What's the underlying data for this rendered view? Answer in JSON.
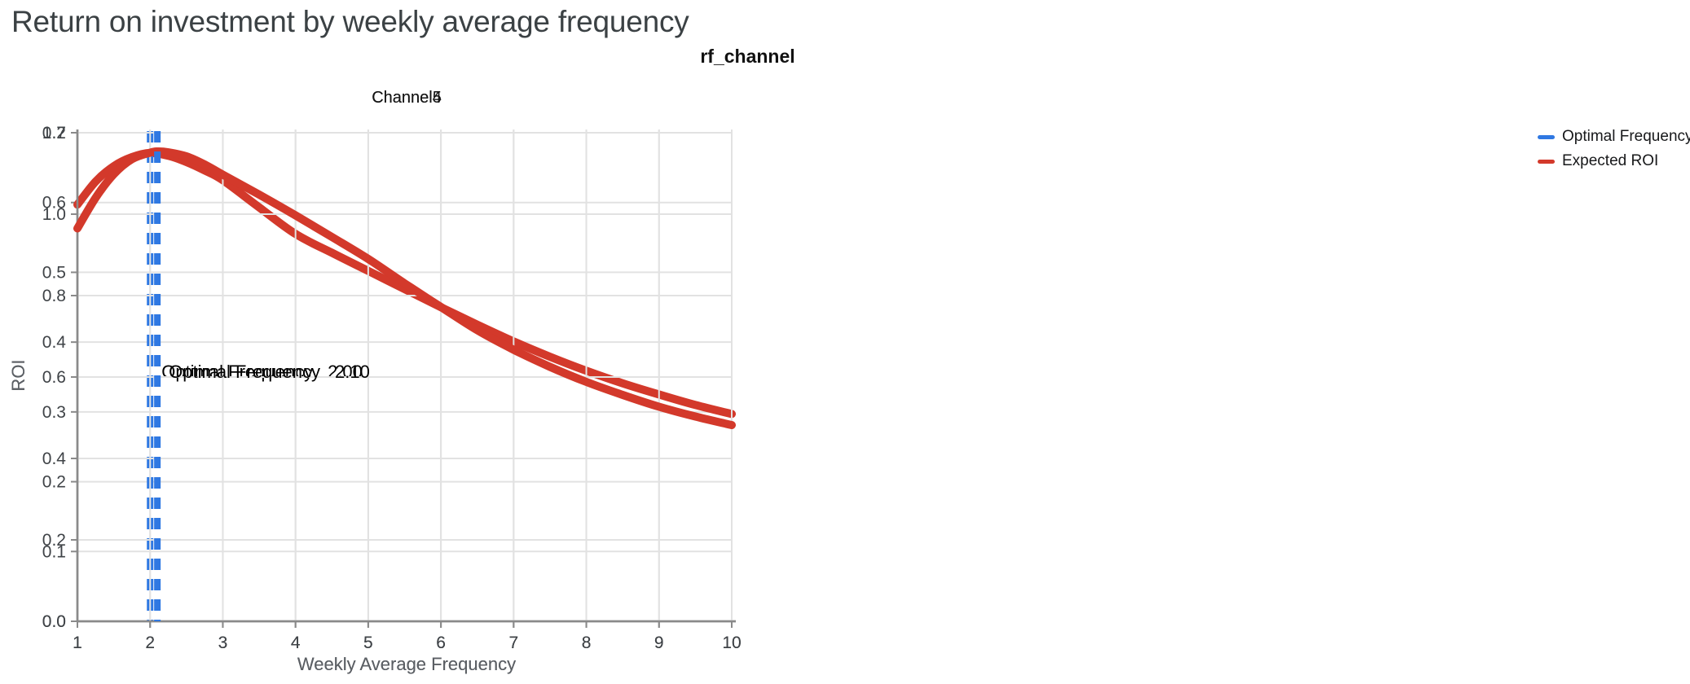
{
  "page": {
    "title": "Return on investment by weekly average frequency"
  },
  "facet_title": "rf_channel",
  "legend": {
    "position": "right",
    "items": [
      {
        "label": "Optimal Frequency",
        "color": "#2f78e2"
      },
      {
        "label": "Expected ROI",
        "color": "#d3392b"
      }
    ]
  },
  "colors": {
    "expected_roi": "#d3392b",
    "optimal_frequency": "#2f78e2",
    "gridline": "#e2e2e2",
    "axis_domain": "#8a8a8a",
    "page_title": "#3b4144"
  },
  "chart_data": [
    {
      "type": "line",
      "title": "Channel4",
      "xlabel": "Weekly Average Frequency",
      "ylabel": "ROI",
      "xlim": [
        1,
        10
      ],
      "ylim": [
        0.0,
        0.7
      ],
      "grid": true,
      "x_ticks": [
        "1",
        "2",
        "3",
        "4",
        "5",
        "6",
        "7",
        "8",
        "9",
        "10"
      ],
      "y_ticks": [
        "0.0",
        "0.1",
        "0.2",
        "0.3",
        "0.4",
        "0.5",
        "0.6",
        "0.7"
      ],
      "optimal_frequency": 2.0,
      "annotation": {
        "label": "Optimal Frequency",
        "value": "2.00"
      },
      "series": [
        {
          "name": "Expected ROI",
          "x": [
            1,
            1.25,
            1.5,
            1.75,
            2,
            2.25,
            2.5,
            2.75,
            3,
            3.5,
            4,
            4.5,
            5,
            5.5,
            6,
            6.5,
            7,
            7.5,
            8,
            8.5,
            9,
            9.5,
            10
          ],
          "y": [
            0.597,
            0.63,
            0.652,
            0.665,
            0.671,
            0.667,
            0.658,
            0.646,
            0.632,
            0.593,
            0.555,
            0.528,
            0.502,
            0.476,
            0.45,
            0.425,
            0.401,
            0.379,
            0.359,
            0.341,
            0.325,
            0.31,
            0.297
          ]
        }
      ]
    },
    {
      "type": "line",
      "title": "Channel5",
      "xlabel": "Weekly Average Frequency",
      "ylabel": "ROI",
      "xlim": [
        1,
        10
      ],
      "ylim": [
        0.0,
        1.2
      ],
      "grid": true,
      "x_ticks": [
        "1",
        "2",
        "3",
        "4",
        "5",
        "6",
        "7",
        "8",
        "9",
        "10"
      ],
      "y_ticks": [
        "0.0",
        "0.2",
        "0.4",
        "0.6",
        "0.8",
        "1.0",
        "1.2"
      ],
      "optimal_frequency": 2.1,
      "annotation": {
        "label": "Optimal Frequency",
        "value": "2.10"
      },
      "series": [
        {
          "name": "Expected ROI",
          "x": [
            1,
            1.25,
            1.5,
            1.75,
            2,
            2.1,
            2.25,
            2.5,
            2.75,
            3,
            3.5,
            4,
            4.5,
            5,
            5.5,
            6,
            6.5,
            7,
            7.5,
            8,
            8.5,
            9,
            9.5,
            10
          ],
          "y": [
            0.965,
            1.04,
            1.098,
            1.135,
            1.151,
            1.154,
            1.152,
            1.142,
            1.122,
            1.097,
            1.048,
            0.997,
            0.944,
            0.89,
            0.83,
            0.772,
            0.715,
            0.667,
            0.625,
            0.588,
            0.556,
            0.527,
            0.503,
            0.482
          ]
        }
      ]
    }
  ]
}
